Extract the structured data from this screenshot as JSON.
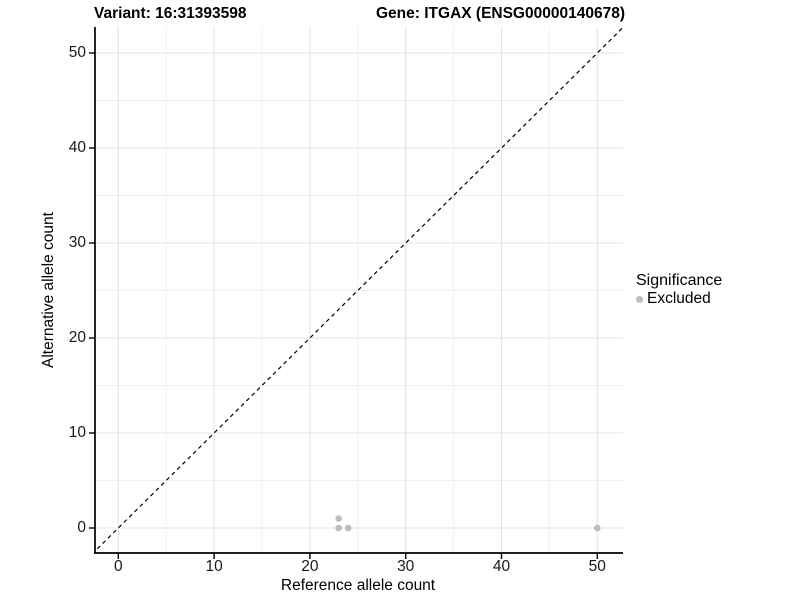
{
  "chart_data": {
    "type": "scatter",
    "title_left": "Variant: 16:31393598",
    "title_right": "Gene: ITGAX (ENSG00000140678)",
    "xlabel": "Reference allele count",
    "ylabel": "Alternative allele count",
    "xlim": [
      -2.75,
      52.75
    ],
    "ylim": [
      -2.75,
      52.75
    ],
    "xticks": [
      0,
      10,
      20,
      30,
      40,
      50
    ],
    "yticks": [
      0,
      10,
      20,
      30,
      40,
      50
    ],
    "minor_gridlines": [
      5,
      15,
      25,
      35,
      45
    ],
    "grid": true,
    "legend_title": "Significance",
    "legend_position": "right",
    "reference_line": {
      "type": "identity",
      "style": "dashed",
      "color": "#000000"
    },
    "series": [
      {
        "name": "Excluded",
        "color": "#bdbdbd",
        "points": [
          [
            23,
            1
          ],
          [
            23,
            0
          ],
          [
            24,
            0
          ],
          [
            50,
            0
          ]
        ]
      }
    ]
  },
  "colors": {
    "grid_major": "#e3e3e3",
    "grid_minor": "#efefef",
    "axis_line": "#000000",
    "tick_text": "#1a1a1a",
    "background": "#ffffff"
  }
}
